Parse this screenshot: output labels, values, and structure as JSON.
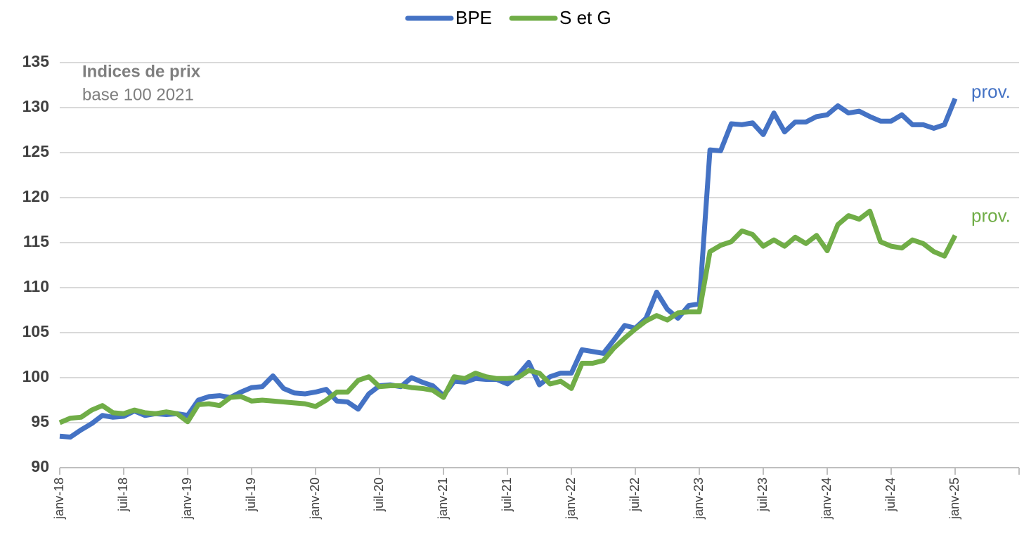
{
  "chart_data": {
    "type": "line",
    "annotation_title": "Indices de prix",
    "annotation_subtitle": "base 100  2021",
    "categories": [
      "janv-18",
      null,
      null,
      null,
      null,
      null,
      "juil-18",
      null,
      null,
      null,
      null,
      null,
      "janv-19",
      null,
      null,
      null,
      null,
      null,
      "juil-19",
      null,
      null,
      null,
      null,
      null,
      "janv-20",
      null,
      null,
      null,
      null,
      null,
      "juil-20",
      null,
      null,
      null,
      null,
      null,
      "janv-21",
      null,
      null,
      null,
      null,
      null,
      "juil-21",
      null,
      null,
      null,
      null,
      null,
      "janv-22",
      null,
      null,
      null,
      null,
      null,
      "juil-22",
      null,
      null,
      null,
      null,
      null,
      "janv-23",
      null,
      null,
      null,
      null,
      null,
      "juil-23",
      null,
      null,
      null,
      null,
      null,
      "janv-24",
      null,
      null,
      null,
      null,
      null,
      "juil-24",
      null,
      null,
      null,
      null,
      null,
      "janv-25"
    ],
    "series": [
      {
        "name": "BPE",
        "color": "#4472c4",
        "end_label": "prov.",
        "values": [
          93.5,
          93.4,
          94.2,
          94.9,
          95.8,
          95.6,
          95.7,
          96.3,
          95.8,
          96.0,
          95.9,
          96.0,
          95.8,
          97.5,
          97.9,
          98.0,
          97.8,
          98.4,
          98.9,
          99.0,
          100.2,
          98.8,
          98.3,
          98.2,
          98.4,
          98.7,
          97.4,
          97.3,
          96.5,
          98.2,
          99.1,
          99.2,
          99.0,
          100.0,
          99.5,
          99.1,
          98.0,
          99.6,
          99.5,
          99.9,
          99.8,
          99.8,
          99.3,
          100.3,
          101.7,
          99.2,
          100.1,
          100.5,
          100.5,
          103.1,
          102.9,
          102.7,
          104.2,
          105.8,
          105.5,
          106.6,
          109.5,
          107.6,
          106.6,
          108.0,
          108.2,
          125.3,
          125.2,
          128.2,
          128.1,
          128.3,
          127.0,
          129.4,
          127.3,
          128.4,
          128.4,
          129.0,
          129.2,
          130.2,
          129.4,
          129.6,
          129.0,
          128.5,
          128.5,
          129.2,
          128.1,
          128.1,
          127.7,
          128.1,
          131.0
        ]
      },
      {
        "name": "S et G",
        "color": "#70ad47",
        "end_label": "prov.",
        "values": [
          95.0,
          95.5,
          95.6,
          96.4,
          96.9,
          96.1,
          96.0,
          96.4,
          96.1,
          96.0,
          96.2,
          96.0,
          95.1,
          97.0,
          97.1,
          96.9,
          97.8,
          97.9,
          97.4,
          97.5,
          97.4,
          97.3,
          97.2,
          97.1,
          96.8,
          97.5,
          98.4,
          98.4,
          99.7,
          100.1,
          99.0,
          99.1,
          99.1,
          98.9,
          98.8,
          98.6,
          97.8,
          100.1,
          99.9,
          100.5,
          100.1,
          99.9,
          99.9,
          100.0,
          100.8,
          100.5,
          99.3,
          99.6,
          98.8,
          101.6,
          101.6,
          101.9,
          103.3,
          104.4,
          105.4,
          106.3,
          106.9,
          106.4,
          107.2,
          107.3,
          107.3,
          114.0,
          114.7,
          115.1,
          116.3,
          115.9,
          114.6,
          115.3,
          114.6,
          115.6,
          114.9,
          115.8,
          114.1,
          117.0,
          118.0,
          117.6,
          118.5,
          115.1,
          114.6,
          114.4,
          115.3,
          114.9,
          114.0,
          113.5,
          115.8
        ]
      }
    ],
    "ylim": [
      90,
      135
    ],
    "yticks": [
      90,
      95,
      100,
      105,
      110,
      115,
      120,
      125,
      130,
      135
    ],
    "grid": true,
    "legend": "top"
  }
}
